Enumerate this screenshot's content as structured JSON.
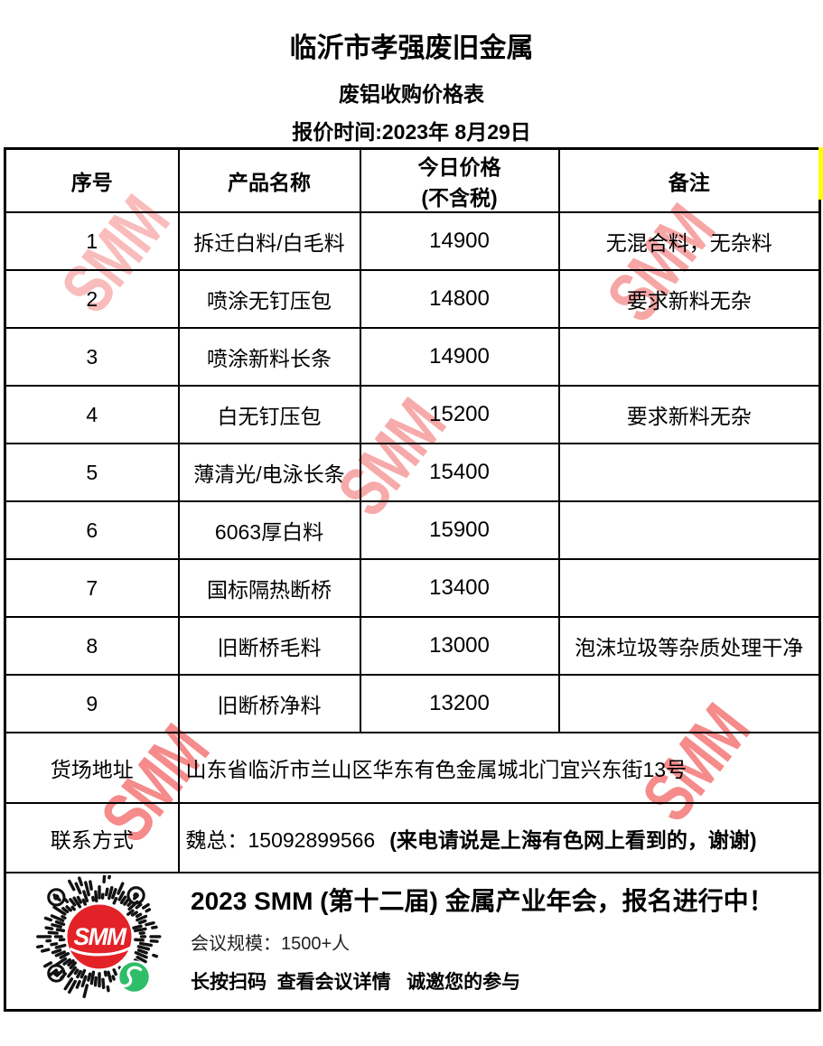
{
  "page": {
    "title": "临沂市孝强废旧金属",
    "subtitle": "废铝收购价格表",
    "date_line": "报价时间:2023年 8月29日"
  },
  "table": {
    "headers": {
      "seq": "序号",
      "name": "产品名称",
      "price_line1": "今日价格",
      "price_line2": "(不含税)",
      "note": "备注"
    },
    "rows": [
      {
        "seq": "1",
        "name": "拆迁白料/白毛料",
        "price": "14900",
        "note": "无混合料，无杂料"
      },
      {
        "seq": "2",
        "name": "喷涂无钉压包",
        "price": "14800",
        "note": "要求新料无杂"
      },
      {
        "seq": "3",
        "name": "喷涂新料长条",
        "price": "14900",
        "note": ""
      },
      {
        "seq": "4",
        "name": "白无钉压包",
        "price": "15200",
        "note": "要求新料无杂"
      },
      {
        "seq": "5",
        "name": "薄清光/电泳长条",
        "price": "15400",
        "note": ""
      },
      {
        "seq": "6",
        "name": "6063厚白料",
        "price": "15900",
        "note": ""
      },
      {
        "seq": "7",
        "name": "国标隔热断桥",
        "price": "13400",
        "note": ""
      },
      {
        "seq": "8",
        "name": "旧断桥毛料",
        "price": "13000",
        "note": "泡沫垃圾等杂质处理干净"
      },
      {
        "seq": "9",
        "name": "旧断桥净料",
        "price": "13200",
        "note": ""
      }
    ],
    "address_label": "货场地址",
    "address_value": "山东省临沂市兰山区华东有色金属城北门宜兴东街13号",
    "contact_label": "联系方式",
    "contact_value": "魏总：15092899566",
    "contact_note": "(来电请说是上海有色网上看到的，谢谢)"
  },
  "footer": {
    "headline": "2023 SMM (第十二届) 金属产业年会，报名进行中！",
    "scale_label": "会议规模：",
    "scale_value": "1500+人",
    "cta": "长按扫码  查看会议详情   诚邀您的参与",
    "qr_logo_text": "SMM"
  },
  "watermark": {
    "text": "SMM",
    "color": "#f05050"
  },
  "colors": {
    "smm_red": "#e32228",
    "wechat_green": "#2ebd68",
    "stripe_yellow": "#ffff00"
  }
}
